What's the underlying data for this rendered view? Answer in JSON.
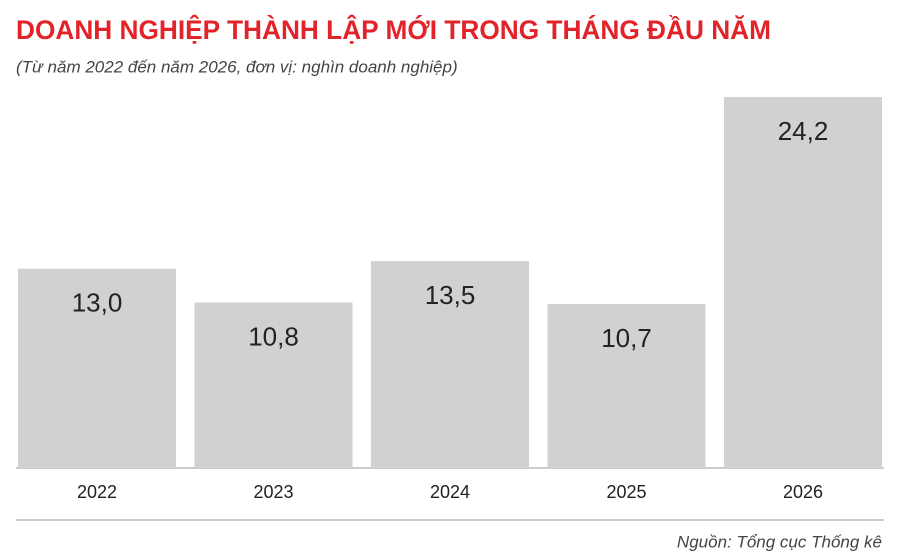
{
  "chart_data": {
    "type": "bar",
    "title": "DOANH NGHIỆP THÀNH LẬP MỚI TRONG THÁNG ĐẦU NĂM",
    "subtitle": "(Từ năm 2022 đến năm 2026, đơn vị: nghìn doanh nghiệp)",
    "source": "Nguồn: Tổng cục Thống kê",
    "categories": [
      "2022",
      "2023",
      "2024",
      "2025",
      "2026"
    ],
    "values": [
      13.0,
      10.8,
      13.5,
      10.7,
      24.2
    ],
    "value_labels": [
      "13,0",
      "10,8",
      "13,5",
      "10,7",
      "24,2"
    ],
    "color": "#d2d1d2"
  }
}
